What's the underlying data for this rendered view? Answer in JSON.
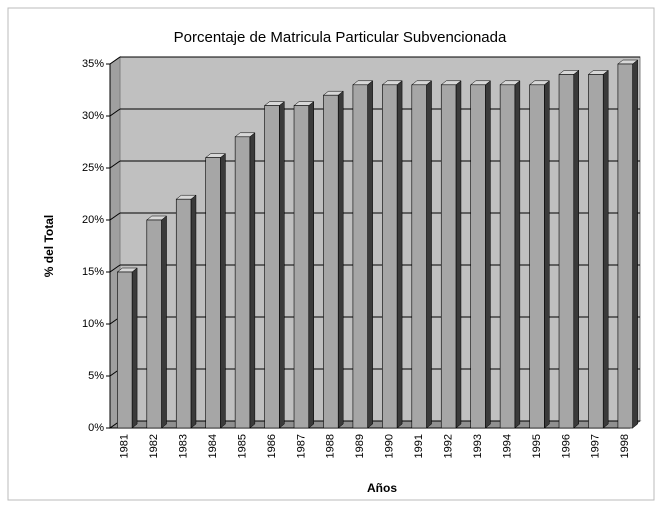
{
  "chart_data": {
    "type": "bar",
    "title": "Porcentaje de Matricula Particular Subvencionada",
    "y_label": "% del Total",
    "x_label": "Años",
    "categories": [
      "1981",
      "1982",
      "1983",
      "1984",
      "1985",
      "1986",
      "1987",
      "1988",
      "1989",
      "1990",
      "1991",
      "1992",
      "1993",
      "1994",
      "1995",
      "1996",
      "1997",
      "1998"
    ],
    "values": [
      15,
      20,
      22,
      26,
      28,
      31,
      31,
      32,
      33,
      33,
      33,
      33,
      33,
      33,
      33,
      34,
      34,
      35
    ],
    "color": "#a6a6a6",
    "ylim": [
      0,
      35
    ],
    "yticks": [
      {
        "value": 0,
        "label": "0%"
      },
      {
        "value": 5,
        "label": "5%"
      },
      {
        "value": 10,
        "label": "10%"
      },
      {
        "value": 15,
        "label": "15%"
      },
      {
        "value": 20,
        "label": "20%"
      },
      {
        "value": 25,
        "label": "25%"
      },
      {
        "value": 30,
        "label": "30%"
      },
      {
        "value": 35,
        "label": "35%"
      }
    ],
    "grid": true
  }
}
